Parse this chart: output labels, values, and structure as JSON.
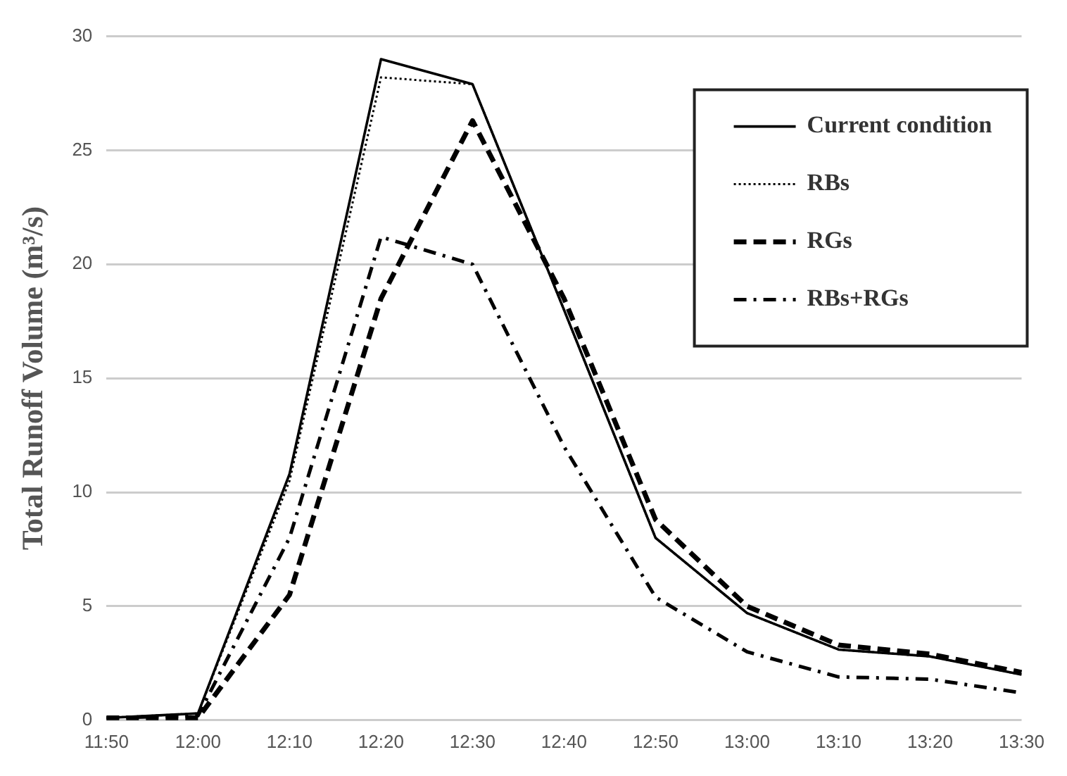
{
  "chart_data": {
    "type": "line",
    "ylabel": "Total Runoff Volume (m³/s)",
    "categories": [
      "11:50",
      "12:00",
      "12:10",
      "12:20",
      "12:30",
      "12:40",
      "12:50",
      "13:00",
      "13:10",
      "13:20",
      "13:30"
    ],
    "ylim": [
      0,
      30
    ],
    "yticks": [
      0,
      5,
      10,
      15,
      20,
      25,
      30
    ],
    "grid": "y",
    "legend": "top right",
    "marker": "none",
    "series": [
      {
        "name": "Current condition",
        "color": "#000000",
        "line_style": "solid",
        "values": [
          0.1,
          0.3,
          10.8,
          29,
          27.9,
          18,
          8,
          4.7,
          3.1,
          2.8,
          2
        ]
      },
      {
        "name": "RBs",
        "color": "#000000",
        "line_style": "dotted",
        "values": [
          0.1,
          0.3,
          10.5,
          28.2,
          27.9,
          18,
          8,
          4.7,
          3.1,
          2.8,
          2
        ]
      },
      {
        "name": "RGs",
        "color": "#000000",
        "line_style": "dashed",
        "values": [
          0.1,
          0.1,
          5.5,
          18.5,
          26.3,
          18.5,
          8.8,
          5,
          3.3,
          2.9,
          2.1
        ]
      },
      {
        "name": "RBs+RGs",
        "color": "#000000",
        "line_style": "dashdot",
        "values": [
          0.1,
          0.2,
          8,
          21.2,
          20,
          12,
          5.4,
          3,
          1.9,
          1.8,
          1.2
        ]
      }
    ]
  }
}
